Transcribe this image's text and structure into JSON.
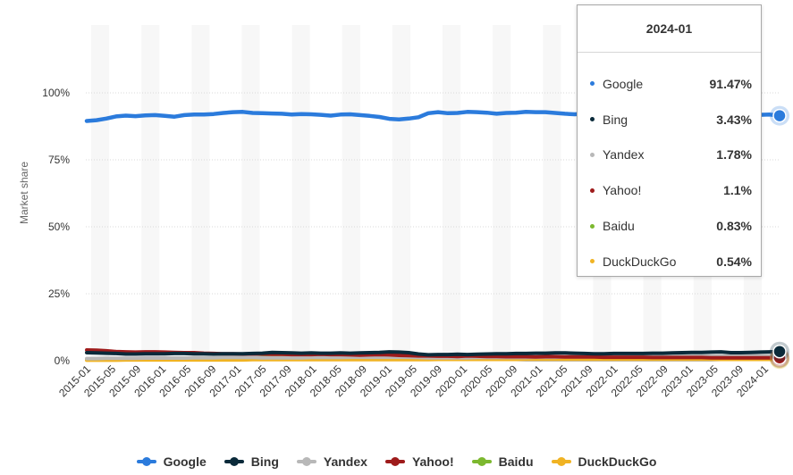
{
  "chart_data": {
    "type": "line",
    "title": "",
    "xlabel": "",
    "ylabel": "Market share",
    "ylim": [
      0,
      100
    ],
    "yticks": [
      "0%",
      "25%",
      "50%",
      "75%",
      "100%"
    ],
    "ytick_values": [
      0,
      25,
      50,
      75,
      100
    ],
    "xticks": [
      "2015-01",
      "2015-05",
      "2015-09",
      "2016-01",
      "2016-05",
      "2016-09",
      "2017-01",
      "2017-05",
      "2017-09",
      "2018-01",
      "2018-05",
      "2018-09",
      "2019-01",
      "2019-05",
      "2019-09",
      "2020-01",
      "2020-05",
      "2020-09",
      "2021-01",
      "2021-05",
      "2021-09",
      "2022-01",
      "2022-05",
      "2022-09",
      "2023-01",
      "2023-05",
      "2023-09",
      "2024-01"
    ],
    "grid": true,
    "legend_position": "bottom",
    "series": [
      {
        "name": "Google",
        "color": "#2b7bdc",
        "values": [
          89.5,
          89.8,
          90.4,
          91.2,
          91.5,
          91.3,
          91.6,
          91.7,
          91.4,
          91.1,
          91.7,
          91.9,
          91.9,
          92.1,
          92.5,
          92.8,
          92.9,
          92.5,
          92.4,
          92.3,
          92.2,
          91.9,
          92.1,
          92.0,
          91.8,
          91.5,
          91.9,
          92.0,
          91.7,
          91.4,
          91.0,
          90.3,
          90.1,
          90.4,
          90.9,
          92.4,
          92.8,
          92.4,
          92.5,
          92.9,
          92.8,
          92.6,
          92.2,
          92.5,
          92.6,
          92.9,
          92.8,
          92.8,
          92.5,
          92.2,
          92.0,
          92.2,
          92.1,
          92.2,
          92.1,
          92.0,
          92.4,
          92.5,
          92.0,
          91.9,
          92.3,
          92.4,
          92.1,
          91.8,
          91.6,
          91.5,
          91.4,
          91.6,
          91.7,
          91.8,
          91.9,
          91.47
        ]
      },
      {
        "name": "Bing",
        "color": "#0a2a3a",
        "values": [
          3.0,
          2.9,
          2.8,
          2.7,
          2.5,
          2.5,
          2.6,
          2.6,
          2.6,
          2.7,
          2.7,
          2.6,
          2.6,
          2.5,
          2.6,
          2.6,
          2.6,
          2.7,
          2.8,
          3.1,
          3.0,
          2.9,
          2.8,
          2.9,
          2.8,
          2.8,
          2.9,
          2.8,
          2.9,
          3.0,
          3.1,
          3.3,
          3.2,
          3.0,
          2.5,
          2.2,
          2.3,
          2.3,
          2.4,
          2.3,
          2.4,
          2.5,
          2.6,
          2.6,
          2.7,
          2.7,
          2.8,
          2.8,
          2.9,
          2.9,
          2.8,
          2.7,
          2.6,
          2.6,
          2.7,
          2.7,
          2.7,
          2.7,
          2.8,
          2.8,
          2.9,
          3.0,
          3.1,
          3.1,
          3.2,
          3.3,
          3.0,
          3.0,
          3.1,
          3.2,
          3.3,
          3.43
        ]
      },
      {
        "name": "Yandex",
        "color": "#b8b8b8",
        "values": [
          0.8,
          0.8,
          0.9,
          0.9,
          0.9,
          0.9,
          1.0,
          1.0,
          1.0,
          1.0,
          1.0,
          1.1,
          1.1,
          1.1,
          1.2,
          1.2,
          1.2,
          1.2,
          1.1,
          1.1,
          1.1,
          1.1,
          1.1,
          1.2,
          1.2,
          1.2,
          1.2,
          1.3,
          1.3,
          1.3,
          1.3,
          1.3,
          1.3,
          1.3,
          1.2,
          1.1,
          1.1,
          1.1,
          1.1,
          1.1,
          1.2,
          1.2,
          1.2,
          1.2,
          1.2,
          1.2,
          1.3,
          1.3,
          1.3,
          1.4,
          1.4,
          1.4,
          1.5,
          1.5,
          1.5,
          1.5,
          1.6,
          1.6,
          1.6,
          1.6,
          1.6,
          1.7,
          1.7,
          1.7,
          1.7,
          1.7,
          1.7,
          1.7,
          1.8,
          1.8,
          1.8,
          1.78
        ]
      },
      {
        "name": "Yahoo!",
        "color": "#9e1b1b",
        "values": [
          4.0,
          3.9,
          3.7,
          3.4,
          3.3,
          3.2,
          3.3,
          3.3,
          3.2,
          3.1,
          3.0,
          3.0,
          2.8,
          2.7,
          2.6,
          2.6,
          2.5,
          2.6,
          2.5,
          2.4,
          2.4,
          2.3,
          2.3,
          2.3,
          2.4,
          2.3,
          2.3,
          2.2,
          2.1,
          2.2,
          2.3,
          2.2,
          2.0,
          1.9,
          1.8,
          1.8,
          1.7,
          1.7,
          1.6,
          1.8,
          1.7,
          1.6,
          1.6,
          1.5,
          1.5,
          1.5,
          1.4,
          1.5,
          1.5,
          1.4,
          1.4,
          1.4,
          1.4,
          1.3,
          1.3,
          1.3,
          1.3,
          1.3,
          1.2,
          1.2,
          1.2,
          1.2,
          1.2,
          1.2,
          1.1,
          1.1,
          1.1,
          1.1,
          1.1,
          1.1,
          1.1,
          1.1
        ]
      },
      {
        "name": "Baidu",
        "color": "#7cb82f",
        "values": [
          0.5,
          0.6,
          0.6,
          0.6,
          0.7,
          0.7,
          0.7,
          0.7,
          0.8,
          0.8,
          0.8,
          0.8,
          0.8,
          0.9,
          0.9,
          0.9,
          1.0,
          1.1,
          1.2,
          1.3,
          1.3,
          1.1,
          1.0,
          1.2,
          1.4,
          1.3,
          1.2,
          1.1,
          1.3,
          1.5,
          1.6,
          1.4,
          1.2,
          1.0,
          0.9,
          0.8,
          0.7,
          0.7,
          0.7,
          0.8,
          0.8,
          0.8,
          0.9,
          0.9,
          0.9,
          1.0,
          1.1,
          1.0,
          1.0,
          1.1,
          1.0,
          1.0,
          0.9,
          0.9,
          0.9,
          0.9,
          0.9,
          0.8,
          0.8,
          0.8,
          0.8,
          0.8,
          0.9,
          0.9,
          0.9,
          0.8,
          0.8,
          0.8,
          0.8,
          0.8,
          0.8,
          0.83
        ]
      },
      {
        "name": "DuckDuckGo",
        "color": "#f0b323",
        "values": [
          0.2,
          0.2,
          0.2,
          0.2,
          0.3,
          0.3,
          0.3,
          0.3,
          0.3,
          0.3,
          0.3,
          0.3,
          0.3,
          0.3,
          0.3,
          0.3,
          0.3,
          0.4,
          0.4,
          0.4,
          0.4,
          0.4,
          0.4,
          0.4,
          0.4,
          0.4,
          0.4,
          0.4,
          0.4,
          0.4,
          0.4,
          0.4,
          0.4,
          0.4,
          0.4,
          0.4,
          0.5,
          0.5,
          0.5,
          0.5,
          0.5,
          0.5,
          0.5,
          0.5,
          0.5,
          0.6,
          0.6,
          0.6,
          0.6,
          0.6,
          0.6,
          0.6,
          0.6,
          0.6,
          0.6,
          0.6,
          0.6,
          0.6,
          0.6,
          0.6,
          0.6,
          0.6,
          0.6,
          0.6,
          0.6,
          0.5,
          0.5,
          0.5,
          0.5,
          0.5,
          0.5,
          0.54
        ]
      }
    ]
  },
  "tooltip": {
    "date": "2024-01",
    "rows": [
      {
        "name": "Google",
        "value": "91.47%",
        "color": "#2b7bdc"
      },
      {
        "name": "Bing",
        "value": "3.43%",
        "color": "#0a2a3a"
      },
      {
        "name": "Yandex",
        "value": "1.78%",
        "color": "#b8b8b8"
      },
      {
        "name": "Yahoo!",
        "value": "1.1%",
        "color": "#9e1b1b"
      },
      {
        "name": "Baidu",
        "value": "0.83%",
        "color": "#7cb82f"
      },
      {
        "name": "DuckDuckGo",
        "value": "0.54%",
        "color": "#f0b323"
      }
    ]
  },
  "legend": [
    {
      "name": "Google",
      "color": "#2b7bdc"
    },
    {
      "name": "Bing",
      "color": "#0a2a3a"
    },
    {
      "name": "Yandex",
      "color": "#b8b8b8"
    },
    {
      "name": "Yahoo!",
      "color": "#9e1b1b"
    },
    {
      "name": "Baidu",
      "color": "#7cb82f"
    },
    {
      "name": "DuckDuckGo",
      "color": "#f0b323"
    }
  ]
}
